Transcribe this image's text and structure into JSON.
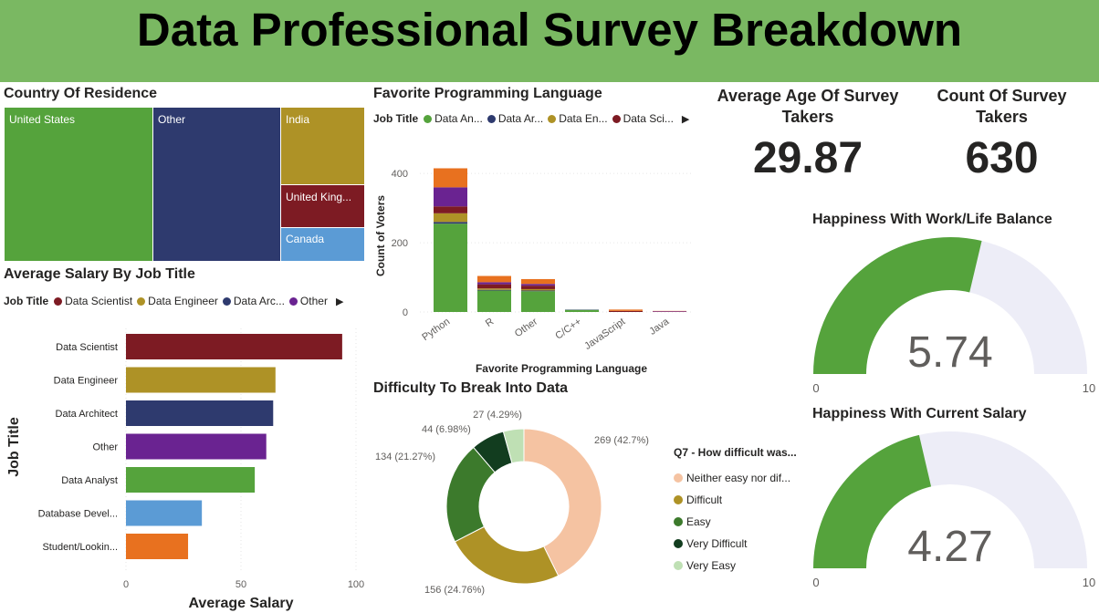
{
  "page_title": "Data Professional Survey Breakdown",
  "colors": {
    "title_bg": "#7ab862",
    "green": "#55a33c",
    "navy": "#2e3a6e",
    "gold": "#ae9226",
    "maroon": "#7d1b23",
    "purple": "#6a2391",
    "blue": "#5b9bd5",
    "orange": "#e8711f",
    "gauge_track": "#ededf7"
  },
  "treemap": {
    "title": "Country Of Residence",
    "cells": [
      {
        "label": "United States",
        "color": "#55a33c"
      },
      {
        "label": "Other",
        "color": "#2e3a6e"
      },
      {
        "label": "India",
        "color": "#ae9226"
      },
      {
        "label": "United King...",
        "color": "#7d1b23"
      },
      {
        "label": "Canada",
        "color": "#5b9bd5"
      }
    ]
  },
  "lang_legend": {
    "title": "Job Title",
    "items": [
      {
        "label": "Data An...",
        "color": "#55a33c"
      },
      {
        "label": "Data Ar...",
        "color": "#2e3a6e"
      },
      {
        "label": "Data En...",
        "color": "#ae9226"
      },
      {
        "label": "Data Sci...",
        "color": "#7d1b23"
      }
    ]
  },
  "salary_legend": {
    "title": "Job Title",
    "items": [
      {
        "label": "Data Scientist",
        "color": "#7d1b23"
      },
      {
        "label": "Data Engineer",
        "color": "#ae9226"
      },
      {
        "label": "Data Arc...",
        "color": "#2e3a6e"
      },
      {
        "label": "Other",
        "color": "#6a2391"
      }
    ]
  },
  "cards": {
    "avg_age_title": "Average Age Of Survey Takers",
    "avg_age_value": "29.87",
    "count_title": "Count Of Survey Takers",
    "count_value": "630"
  },
  "gauge_min": "0",
  "gauge_max": "10",
  "chart_data": [
    {
      "type": "treemap",
      "title": "Country Of Residence",
      "categories": [
        "United States",
        "Other",
        "India",
        "United King...",
        "Canada"
      ],
      "values": [
        260,
        223,
        72,
        35,
        40
      ]
    },
    {
      "type": "bar",
      "stacked": true,
      "title": "Favorite Programming Language",
      "xlabel": "Favorite Programming Language",
      "ylabel": "Count of Voters",
      "categories": [
        "Python",
        "R",
        "Other",
        "C/C++",
        "JavaScript",
        "Java"
      ],
      "ylim": [
        0,
        440
      ],
      "yticks": [
        0,
        200,
        400
      ],
      "series": [
        {
          "name": "Data An...",
          "color": "#55a33c",
          "values": [
            255,
            62,
            60,
            6,
            0,
            0
          ]
        },
        {
          "name": "Data Ar...",
          "color": "#2e3a6e",
          "values": [
            5,
            2,
            2,
            1,
            0,
            0
          ]
        },
        {
          "name": "Data En...",
          "color": "#ae9226",
          "values": [
            25,
            4,
            4,
            0,
            0,
            0
          ]
        },
        {
          "name": "Data Sci...",
          "color": "#7d1b23",
          "values": [
            20,
            12,
            10,
            0,
            3,
            0
          ]
        },
        {
          "name": "",
          "color": "#6a2391",
          "values": [
            55,
            6,
            5,
            0,
            0,
            2
          ]
        },
        {
          "name": "",
          "color": "#e8711f",
          "values": [
            55,
            18,
            14,
            0,
            4,
            1
          ]
        }
      ]
    },
    {
      "type": "bar",
      "orientation": "horizontal",
      "title": "Average Salary By Job Title",
      "xlabel": "Average Salary",
      "ylabel": "Job Title",
      "categories": [
        "Data Scientist",
        "Data Engineer",
        "Data Architect",
        "Other",
        "Data Analyst",
        "Database Devel...",
        "Student/Lookin..."
      ],
      "values": [
        94,
        65,
        64,
        61,
        56,
        33,
        27
      ],
      "colors": [
        "#7d1b23",
        "#ae9226",
        "#2e3a6e",
        "#6a2391",
        "#55a33c",
        "#5b9bd5",
        "#e8711f"
      ],
      "xlim": [
        0,
        100
      ],
      "xticks": [
        0,
        50,
        100
      ]
    },
    {
      "type": "pie",
      "donut": true,
      "title": "Difficulty To Break Into Data",
      "legend_title": "Q7 - How difficult was...",
      "categories": [
        "Neither easy nor dif...",
        "Difficult",
        "Easy",
        "Very Difficult",
        "Very Easy"
      ],
      "values": [
        269,
        156,
        134,
        44,
        27
      ],
      "labels": [
        "269 (42.7%)",
        "156 (24.76%)",
        "134 (21.27%)",
        "44 (6.98%)",
        "27 (4.29%)"
      ],
      "colors": [
        "#f5c3a2",
        "#ae9226",
        "#3c7a2c",
        "#123d1f",
        "#bfe0b4"
      ]
    },
    {
      "type": "gauge",
      "title": "Happiness With Work/Life Balance",
      "value": 5.74,
      "min": 0,
      "max": 10
    },
    {
      "type": "gauge",
      "title": "Happiness With Current Salary",
      "value": 4.27,
      "min": 0,
      "max": 10
    }
  ]
}
